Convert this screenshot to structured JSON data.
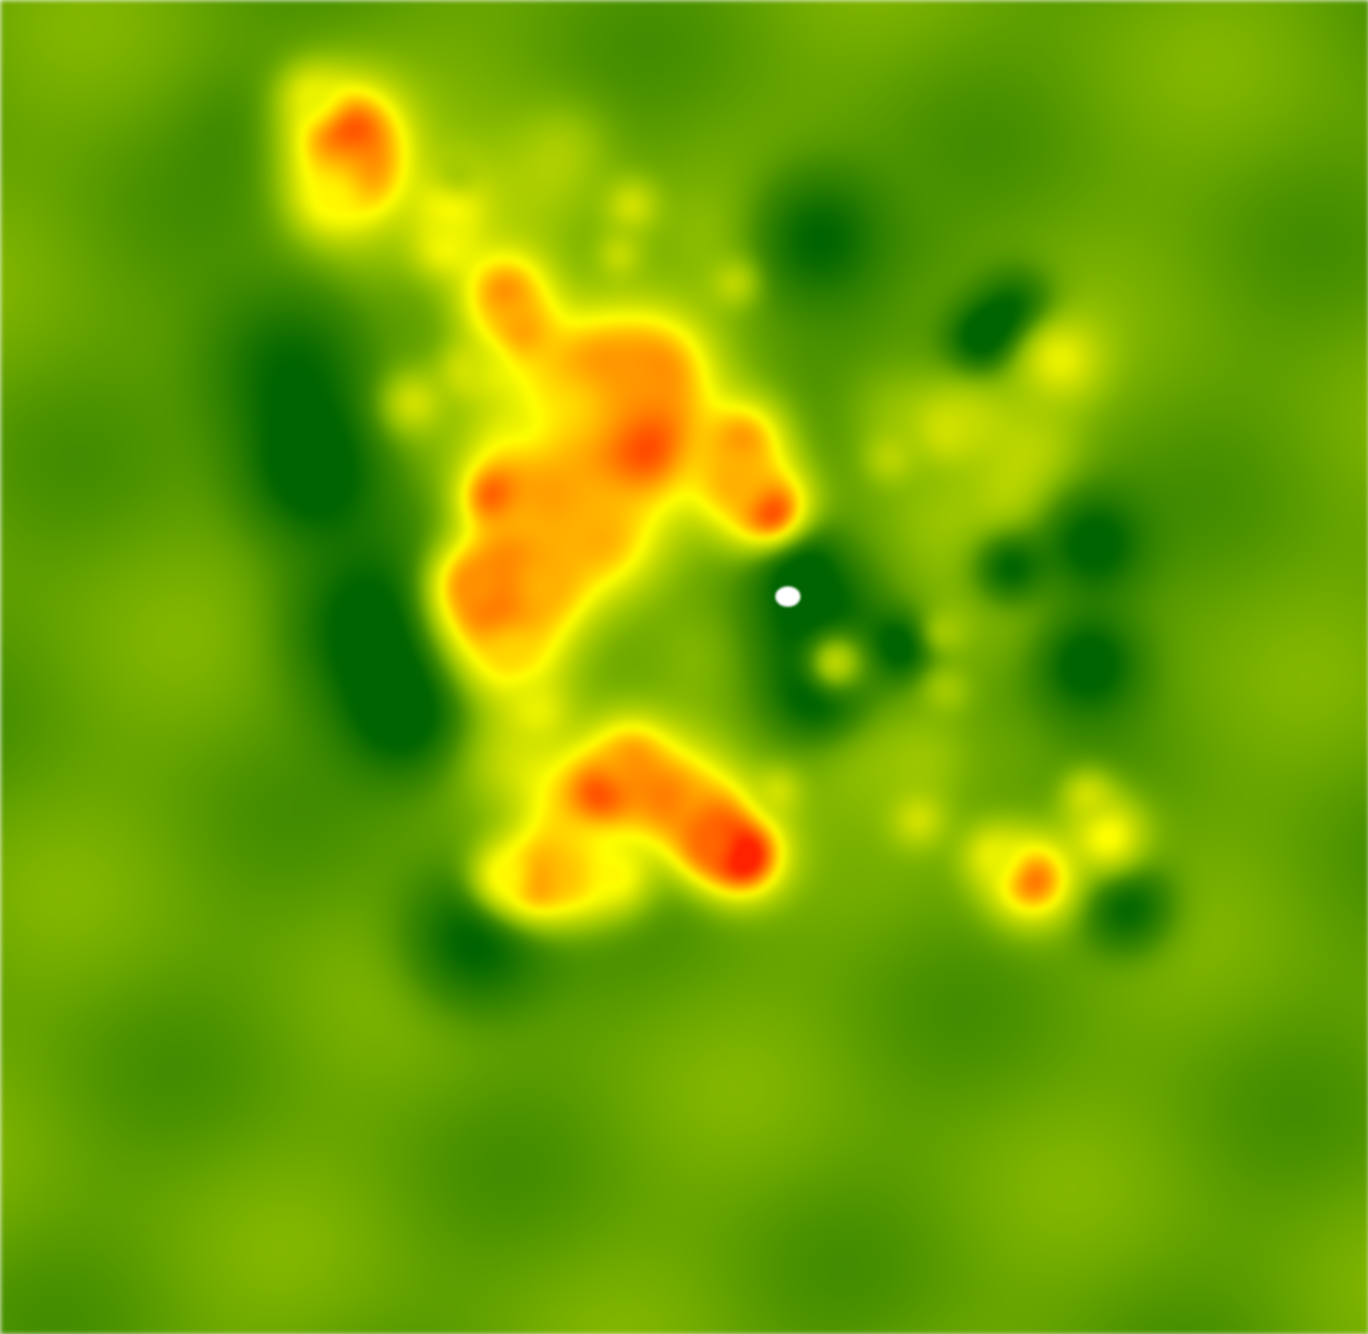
{
  "map": {
    "kind": "heatmap",
    "background": "#ffffff",
    "color_scale": {
      "stops": [
        {
          "value": 0.0,
          "color": "#006400"
        },
        {
          "value": 0.22,
          "color": "#3f8a00"
        },
        {
          "value": 0.4,
          "color": "#8fbf00"
        },
        {
          "value": 0.55,
          "color": "#ccdf00"
        },
        {
          "value": 0.66,
          "color": "#ffff00"
        },
        {
          "value": 0.8,
          "color": "#ffa500"
        },
        {
          "value": 1.0,
          "color": "#ff2200"
        }
      ]
    },
    "legend": "none",
    "labels": "none"
  }
}
